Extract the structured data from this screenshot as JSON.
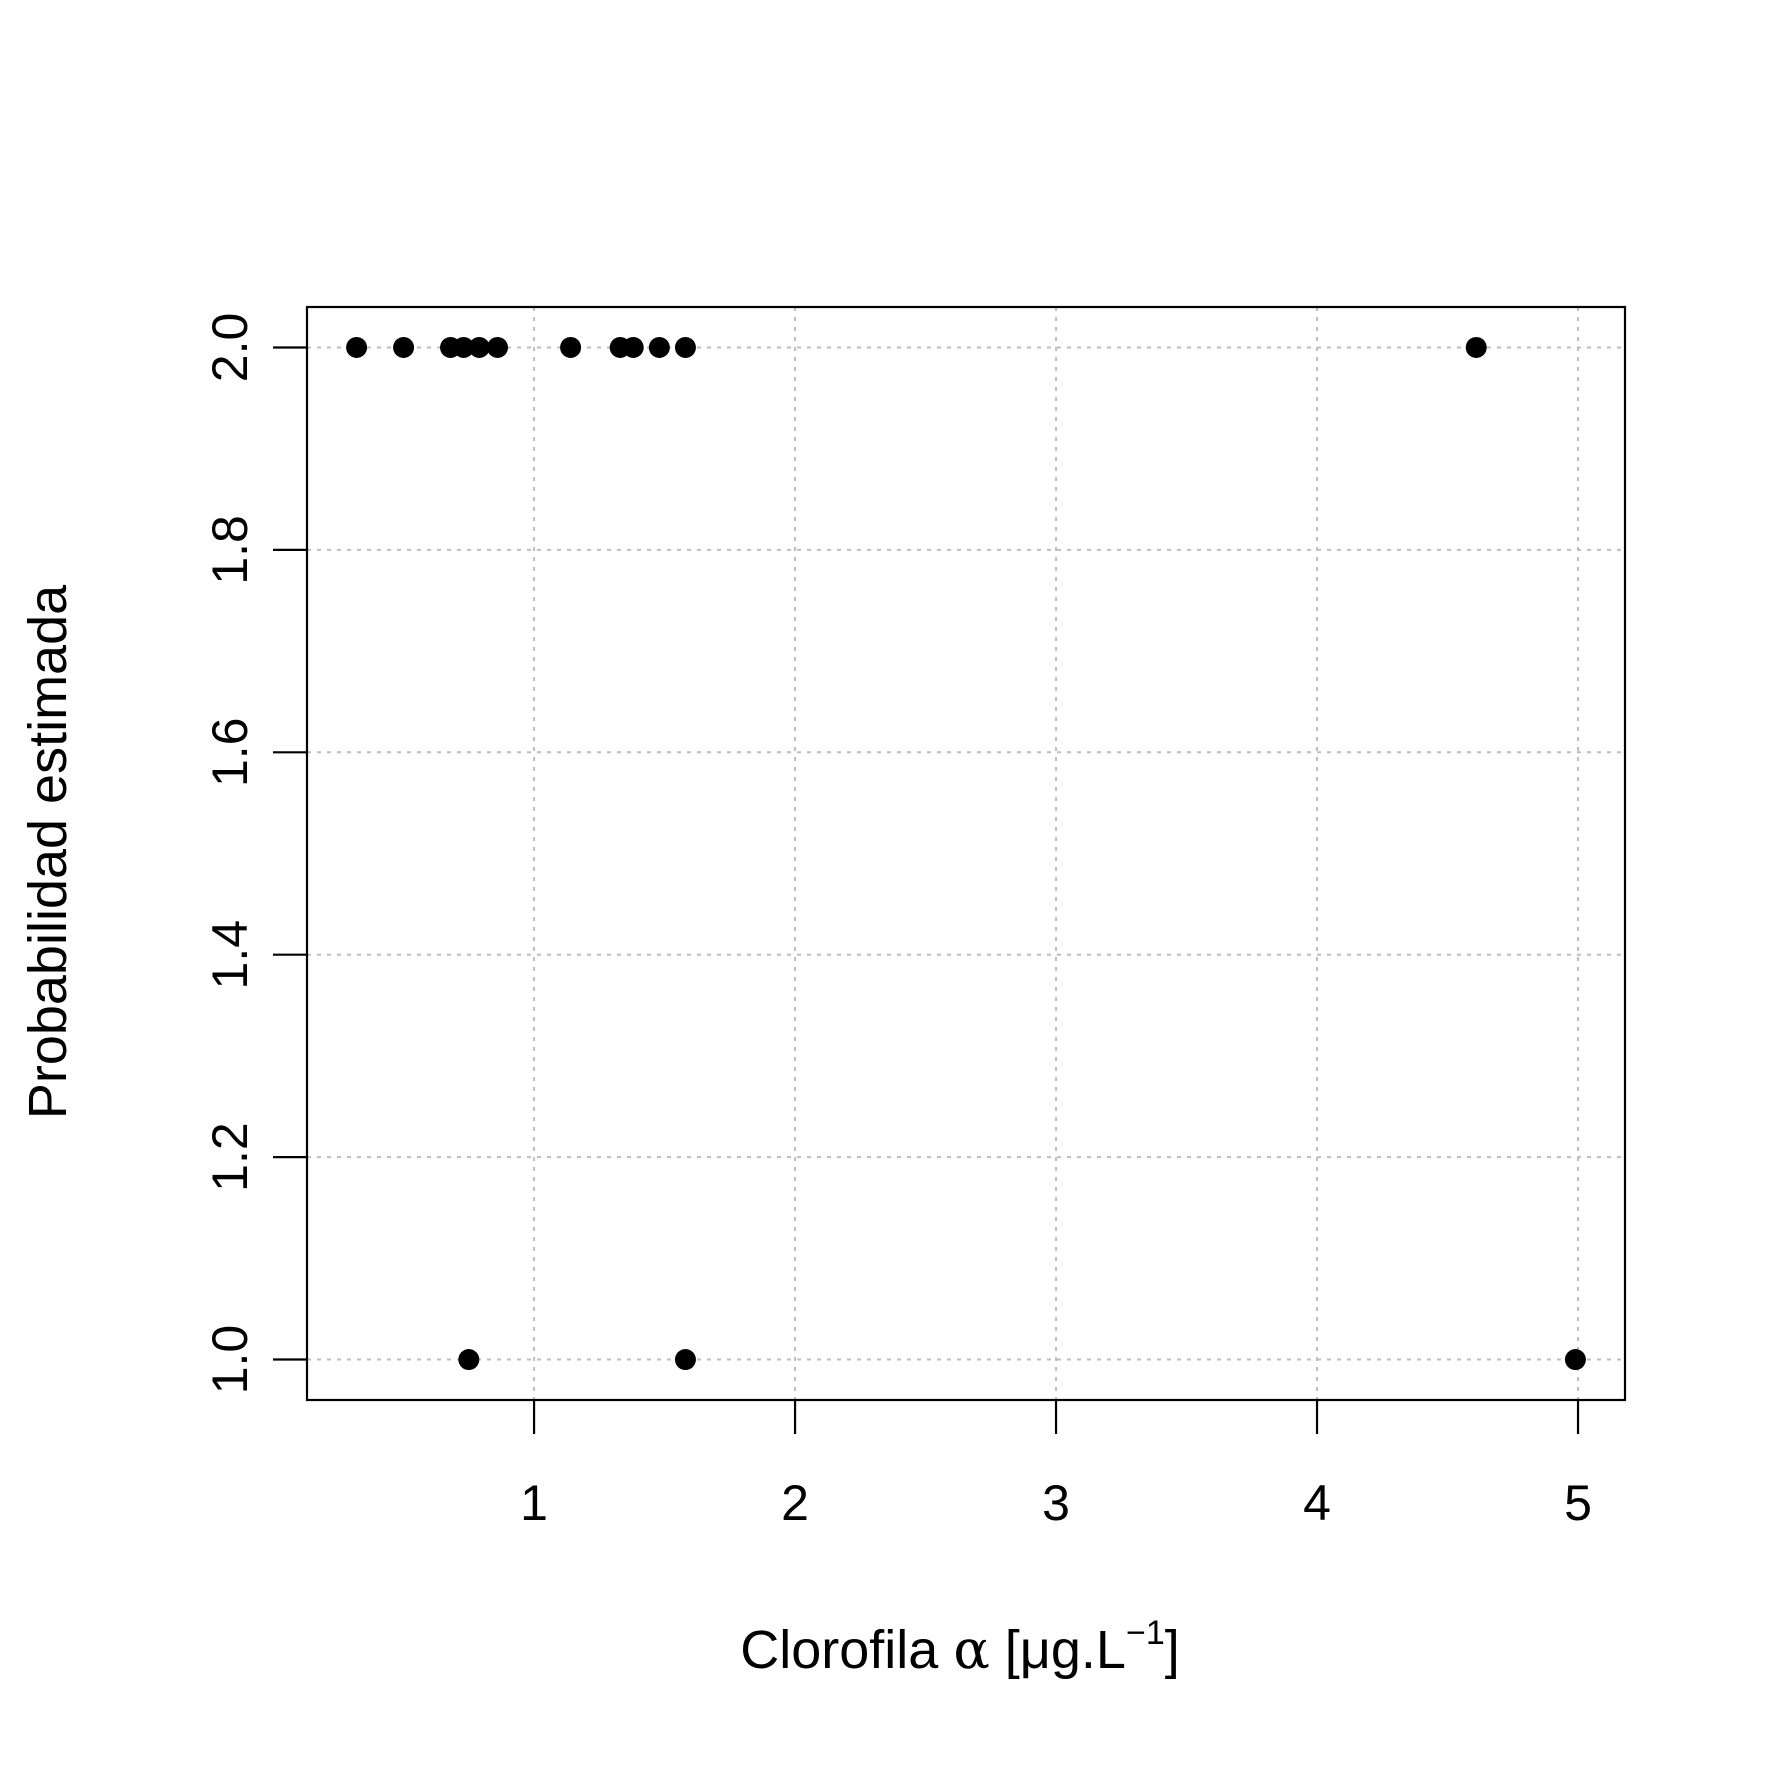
{
  "chart_data": {
    "type": "scatter",
    "title": "",
    "xlabel": {
      "pre": "Clorofila ",
      "symbol": "α",
      "post": " [μg.L",
      "sup": "−1",
      "close": "]"
    },
    "ylabel": "Probabilidad estimada",
    "xlim": [
      0.13,
      5.18
    ],
    "ylim": [
      0.96,
      2.04
    ],
    "xticks": [
      1,
      2,
      3,
      4,
      5
    ],
    "xtick_labels": [
      "1",
      "2",
      "3",
      "4",
      "5"
    ],
    "yticks": [
      1.0,
      1.2,
      1.4,
      1.6,
      1.8,
      2.0
    ],
    "ytick_labels": [
      "1.0",
      "1.2",
      "1.4",
      "1.6",
      "1.8",
      "2.0"
    ],
    "grid": true,
    "colors": {
      "points": "#000000",
      "grid": "#bebebe",
      "axes": "#000000"
    },
    "series": [
      {
        "x": [
          0.32,
          0.5,
          0.68,
          0.73,
          0.79,
          0.86,
          1.14,
          1.33,
          1.38,
          1.48,
          1.58,
          4.61,
          0.75,
          1.58,
          4.99
        ],
        "y": [
          2,
          2,
          2,
          2,
          2,
          2,
          2,
          2,
          2,
          2,
          2,
          2,
          1,
          1,
          1
        ]
      }
    ]
  }
}
